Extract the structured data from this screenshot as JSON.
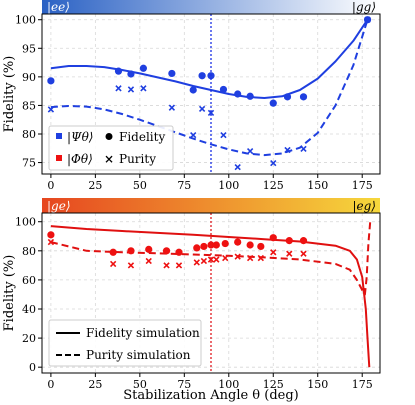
{
  "colors": {
    "blue": "#1f3fe0",
    "red": "#ee1111",
    "sim_red": "#e01010",
    "vline_blue": "#1a2fe6",
    "vline_red": "#e0191f"
  },
  "chart_data": [
    {
      "type": "scatter",
      "ylabel": "Fidelity (%)",
      "xlim": [
        -5,
        185
      ],
      "ylim": [
        73,
        101
      ],
      "xticks": [
        "0",
        "25",
        "50",
        "75",
        "100",
        "125",
        "150",
        "175"
      ],
      "xtick_values": [
        0,
        25,
        50,
        75,
        100,
        125,
        150,
        175
      ],
      "yticks": [
        "75",
        "80",
        "85",
        "90",
        "95",
        "100"
      ],
      "ytick_values": [
        75,
        80,
        85,
        90,
        95,
        100
      ],
      "bar_left_label": "|ee⟩",
      "bar_right_label": "|gg⟩",
      "bar_gradient": [
        "#2a61c4",
        "#ffffff"
      ],
      "vline_x": 90,
      "legend": {
        "state": "|Ψθ⟩",
        "fidelity": "Fidelity",
        "purity": "Purity",
        "placement": "bottom-left"
      },
      "series": [
        {
          "name": "Fidelity",
          "marker": "circle",
          "x": [
            0,
            38,
            45,
            52,
            68,
            80,
            85,
            90,
            97,
            105,
            112,
            125,
            133,
            142,
            178
          ],
          "y": [
            89.3,
            91,
            90.5,
            91.5,
            90.6,
            87.7,
            90.2,
            90.2,
            87.8,
            87,
            86.6,
            85.4,
            86.5,
            86.5,
            100
          ]
        },
        {
          "name": "Purity",
          "marker": "x",
          "x": [
            0,
            38,
            45,
            52,
            68,
            80,
            85,
            90,
            97,
            105,
            112,
            125,
            133,
            142,
            178
          ],
          "y": [
            84.3,
            88,
            87.8,
            88,
            84.6,
            79.8,
            84.4,
            83.7,
            79.8,
            74.2,
            77,
            74.9,
            77.2,
            77.4,
            100
          ]
        },
        {
          "name": "Fidelity simulation",
          "style": "solid",
          "x": [
            0,
            10,
            20,
            30,
            40,
            50,
            60,
            70,
            80,
            90,
            100,
            110,
            120,
            130,
            140,
            150,
            160,
            170,
            178
          ],
          "y": [
            91.5,
            91.9,
            91.9,
            91.7,
            91.2,
            90.6,
            89.9,
            89.2,
            88.4,
            87.7,
            87.0,
            86.5,
            86.3,
            86.6,
            87.7,
            89.7,
            92.7,
            96.3,
            100
          ]
        },
        {
          "name": "Purity simulation",
          "style": "dashed",
          "x": [
            0,
            10,
            20,
            30,
            40,
            50,
            60,
            70,
            80,
            90,
            100,
            110,
            120,
            130,
            140,
            150,
            160,
            170,
            178
          ],
          "y": [
            84.7,
            84.9,
            84.8,
            84.3,
            83.5,
            82.5,
            81.4,
            80.3,
            79.2,
            78.2,
            77.3,
            76.6,
            76.3,
            76.6,
            77.6,
            80.2,
            85.0,
            92.0,
            100
          ]
        }
      ]
    },
    {
      "type": "scatter",
      "ylabel": "Fidelity (%)",
      "xlabel": "Stabilization Angle θ (deg)",
      "xlim": [
        -5,
        185
      ],
      "ylim": [
        -4,
        106
      ],
      "xticks": [
        "0",
        "25",
        "50",
        "75",
        "100",
        "125",
        "150",
        "175"
      ],
      "xtick_values": [
        0,
        25,
        50,
        75,
        100,
        125,
        150,
        175
      ],
      "yticks": [
        "0",
        "20",
        "40",
        "60",
        "80",
        "100"
      ],
      "ytick_values": [
        0,
        20,
        40,
        60,
        80,
        100
      ],
      "bar_left_label": "|ge⟩",
      "bar_right_label": "|eg⟩",
      "bar_gradient": [
        "#e64620",
        "#f6d83c"
      ],
      "vline_x": 90,
      "legend_state": "|Φθ⟩",
      "legend": {
        "solid": "Fidelity simulation",
        "dashed": "Purity simulation",
        "placement": "bottom-left"
      },
      "series": [
        {
          "name": "Fidelity",
          "marker": "circle",
          "x": [
            0,
            35,
            45,
            55,
            65,
            72,
            82,
            86,
            90,
            93,
            98,
            105,
            112,
            118,
            125,
            134,
            142
          ],
          "y": [
            91,
            79,
            80,
            81,
            80,
            79,
            82,
            83,
            84,
            84,
            85,
            86,
            84,
            83,
            89,
            87,
            87
          ]
        },
        {
          "name": "Purity",
          "marker": "x",
          "x": [
            0,
            35,
            45,
            55,
            65,
            72,
            82,
            86,
            90,
            93,
            98,
            105,
            112,
            118,
            125,
            134,
            142
          ],
          "y": [
            86,
            71,
            70,
            73,
            70,
            70,
            72,
            73,
            74,
            74,
            75,
            76,
            75,
            75,
            79,
            78,
            78
          ]
        },
        {
          "name": "Fidelity simulation",
          "style": "solid",
          "x": [
            0,
            20,
            40,
            60,
            80,
            100,
            120,
            140,
            160,
            168,
            172,
            175,
            177,
            178,
            179
          ],
          "y": [
            97,
            95,
            93.6,
            92.3,
            91,
            89.5,
            88,
            86.4,
            83.5,
            80,
            74,
            62,
            40,
            20,
            0
          ]
        },
        {
          "name": "Purity simulation",
          "style": "dashed",
          "x": [
            0,
            20,
            40,
            60,
            80,
            100,
            120,
            140,
            160,
            168,
            172,
            175,
            176.5,
            177.5,
            178.5,
            179.5
          ],
          "y": [
            86,
            80,
            79,
            78.3,
            77.5,
            76.6,
            75.5,
            74,
            71,
            67,
            60,
            53,
            50,
            62,
            85,
            100
          ]
        }
      ]
    }
  ]
}
